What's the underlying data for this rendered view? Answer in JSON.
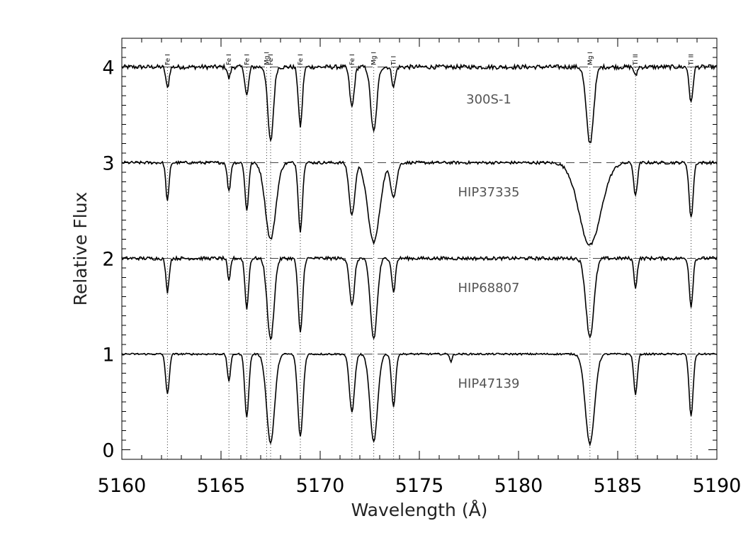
{
  "chart_data": {
    "type": "line",
    "title": "",
    "xlabel": "Wavelength (Å)",
    "ylabel": "Relative Flux",
    "xlim": [
      5160,
      5190
    ],
    "ylim": [
      -0.1,
      4.3
    ],
    "x_ticks": [
      5160,
      5165,
      5170,
      5175,
      5180,
      5185,
      5190
    ],
    "y_ticks": [
      0,
      1,
      2,
      3,
      4
    ],
    "grid": false,
    "reference_lines": [
      1,
      2,
      3,
      4
    ],
    "line_ids": [
      {
        "wavelength": 5162.3,
        "label": "Fe I"
      },
      {
        "wavelength": 5165.4,
        "label": "Fe I"
      },
      {
        "wavelength": 5166.3,
        "label": "Fe I"
      },
      {
        "wavelength": 5167.3,
        "label": "Mg I"
      },
      {
        "wavelength": 5167.5,
        "label": "Fe I"
      },
      {
        "wavelength": 5169.0,
        "label": "Fe I"
      },
      {
        "wavelength": 5171.6,
        "label": "Fe I"
      },
      {
        "wavelength": 5172.7,
        "label": "Mg I"
      },
      {
        "wavelength": 5173.7,
        "label": "Ti I"
      },
      {
        "wavelength": 5183.6,
        "label": "Mg I"
      },
      {
        "wavelength": 5185.9,
        "label": "Ti II"
      },
      {
        "wavelength": 5188.7,
        "label": "Ti II"
      }
    ],
    "series": [
      {
        "name": "300S-1",
        "offset": 3,
        "noise": 0.045,
        "label_position": [
          5178.5,
          3.62
        ],
        "lines": [
          {
            "center": 5162.3,
            "depth": 0.22,
            "width": 0.08
          },
          {
            "center": 5165.4,
            "depth": 0.12,
            "width": 0.07
          },
          {
            "center": 5166.3,
            "depth": 0.3,
            "width": 0.09
          },
          {
            "center": 5167.5,
            "depth": 0.78,
            "width": 0.14
          },
          {
            "center": 5169.0,
            "depth": 0.62,
            "width": 0.1
          },
          {
            "center": 5171.6,
            "depth": 0.42,
            "width": 0.11
          },
          {
            "center": 5172.7,
            "depth": 0.68,
            "width": 0.15
          },
          {
            "center": 5173.7,
            "depth": 0.2,
            "width": 0.09
          },
          {
            "center": 5183.6,
            "depth": 0.8,
            "width": 0.18
          },
          {
            "center": 5185.9,
            "depth": 0.1,
            "width": 0.07
          },
          {
            "center": 5188.7,
            "depth": 0.38,
            "width": 0.09
          }
        ]
      },
      {
        "name": "HIP37335",
        "offset": 2,
        "noise": 0.03,
        "label_position": [
          5178.5,
          2.65
        ],
        "lines": [
          {
            "center": 5162.3,
            "depth": 0.4,
            "width": 0.08
          },
          {
            "center": 5165.4,
            "depth": 0.3,
            "width": 0.08
          },
          {
            "center": 5166.3,
            "depth": 0.5,
            "width": 0.09
          },
          {
            "center": 5167.5,
            "depth": 0.8,
            "width": 0.26
          },
          {
            "center": 5169.0,
            "depth": 0.72,
            "width": 0.1
          },
          {
            "center": 5171.6,
            "depth": 0.55,
            "width": 0.14
          },
          {
            "center": 5172.7,
            "depth": 0.83,
            "width": 0.3
          },
          {
            "center": 5173.7,
            "depth": 0.35,
            "width": 0.15
          },
          {
            "center": 5183.6,
            "depth": 0.86,
            "width": 0.55
          },
          {
            "center": 5185.9,
            "depth": 0.35,
            "width": 0.09
          },
          {
            "center": 5188.7,
            "depth": 0.58,
            "width": 0.1
          }
        ]
      },
      {
        "name": "HIP68807",
        "offset": 1,
        "noise": 0.035,
        "label_position": [
          5178.5,
          1.65
        ],
        "lines": [
          {
            "center": 5162.3,
            "depth": 0.35,
            "width": 0.08
          },
          {
            "center": 5165.4,
            "depth": 0.25,
            "width": 0.07
          },
          {
            "center": 5166.3,
            "depth": 0.52,
            "width": 0.09
          },
          {
            "center": 5167.5,
            "depth": 0.85,
            "width": 0.17
          },
          {
            "center": 5169.0,
            "depth": 0.78,
            "width": 0.11
          },
          {
            "center": 5171.6,
            "depth": 0.5,
            "width": 0.12
          },
          {
            "center": 5172.7,
            "depth": 0.84,
            "width": 0.17
          },
          {
            "center": 5173.7,
            "depth": 0.35,
            "width": 0.09
          },
          {
            "center": 5183.6,
            "depth": 0.82,
            "width": 0.2
          },
          {
            "center": 5185.9,
            "depth": 0.3,
            "width": 0.08
          },
          {
            "center": 5188.7,
            "depth": 0.5,
            "width": 0.09
          }
        ]
      },
      {
        "name": "HIP47139",
        "offset": 0,
        "noise": 0.018,
        "label_position": [
          5178.5,
          0.65
        ],
        "lines": [
          {
            "center": 5162.3,
            "depth": 0.42,
            "width": 0.09
          },
          {
            "center": 5165.4,
            "depth": 0.28,
            "width": 0.08
          },
          {
            "center": 5166.3,
            "depth": 0.66,
            "width": 0.1
          },
          {
            "center": 5167.5,
            "depth": 0.93,
            "width": 0.2
          },
          {
            "center": 5169.0,
            "depth": 0.86,
            "width": 0.13
          },
          {
            "center": 5171.6,
            "depth": 0.6,
            "width": 0.13
          },
          {
            "center": 5172.7,
            "depth": 0.92,
            "width": 0.19
          },
          {
            "center": 5173.7,
            "depth": 0.55,
            "width": 0.1
          },
          {
            "center": 5176.6,
            "depth": 0.08,
            "width": 0.06
          },
          {
            "center": 5183.6,
            "depth": 0.94,
            "width": 0.23
          },
          {
            "center": 5185.9,
            "depth": 0.42,
            "width": 0.09
          },
          {
            "center": 5188.7,
            "depth": 0.65,
            "width": 0.1
          }
        ]
      }
    ]
  }
}
